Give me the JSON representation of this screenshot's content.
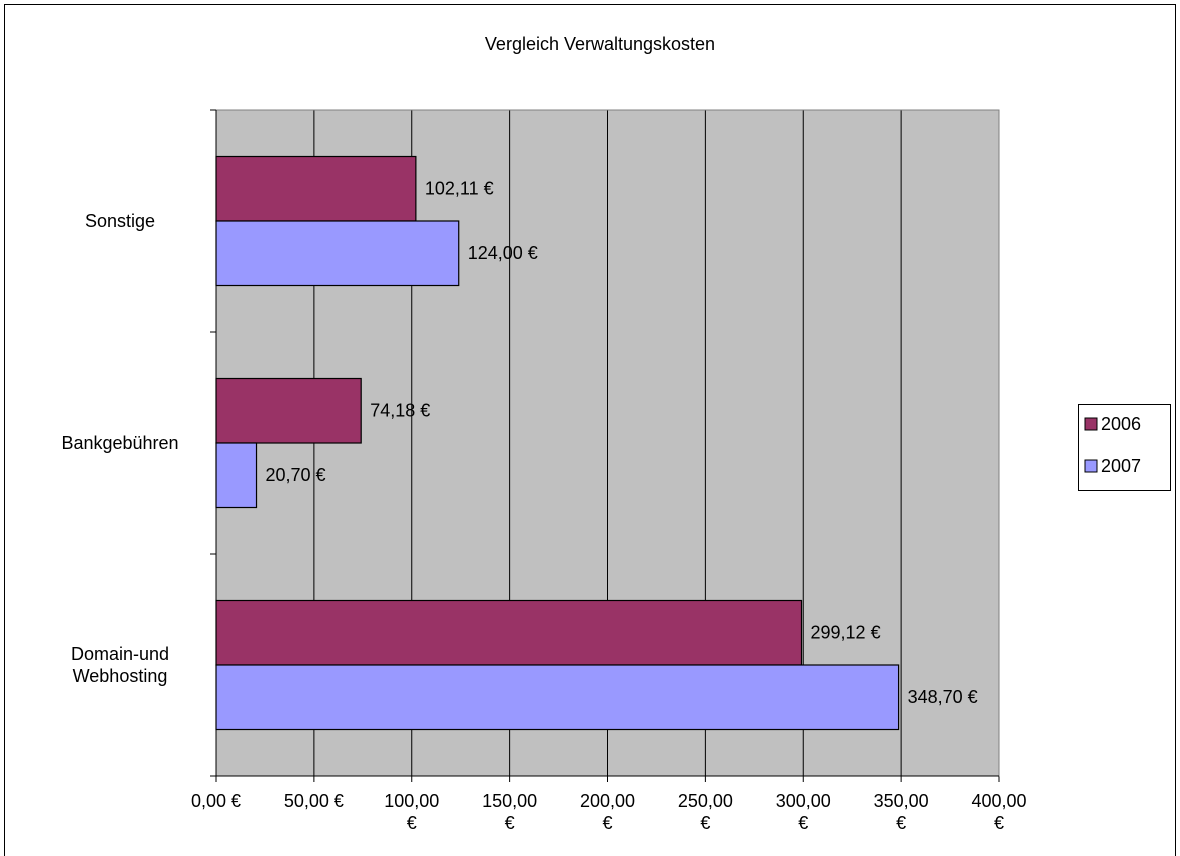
{
  "chart_data": {
    "type": "barh",
    "title": "Vergleich Verwaltungskosten",
    "categories": [
      "Domain-und Webhosting",
      "Bankgebühren",
      "Sonstige"
    ],
    "series": [
      {
        "name": "2006",
        "color": "#993366",
        "values": [
          299.12,
          74.18,
          102.11
        ],
        "value_labels": [
          "299,12 €",
          "74,18 €",
          "102,11 €"
        ]
      },
      {
        "name": "2007",
        "color": "#9999FF",
        "values": [
          348.7,
          20.7,
          124.0
        ],
        "value_labels": [
          "348,70 €",
          "20,70 €",
          "124,00 €"
        ]
      }
    ],
    "xlim": [
      0,
      400
    ],
    "xticks": [
      {
        "value": 0,
        "label": "0,00 €"
      },
      {
        "value": 50,
        "label": "50,00 €"
      },
      {
        "value": 100,
        "label": "100,00 €"
      },
      {
        "value": 150,
        "label": "150,00 €"
      },
      {
        "value": 200,
        "label": "200,00 €"
      },
      {
        "value": 250,
        "label": "250,00 €"
      },
      {
        "value": 300,
        "label": "300,00 €"
      },
      {
        "value": 350,
        "label": "350,00 €"
      },
      {
        "value": 400,
        "label": "400,00 €"
      }
    ],
    "grid": true,
    "legend": "right",
    "plot_background": "#C0C0C0"
  }
}
